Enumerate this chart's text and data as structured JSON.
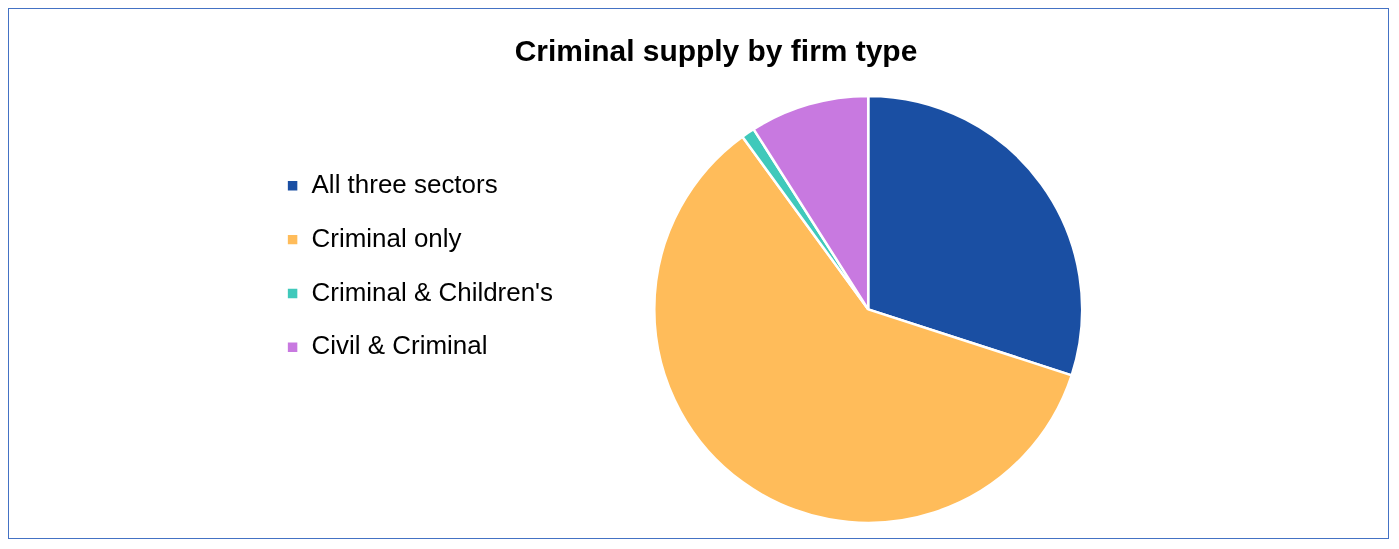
{
  "chart_data": {
    "type": "pie",
    "title": "Criminal supply by firm type",
    "categories": [
      "All three sectors",
      "Criminal only",
      "Criminal & Children's",
      "Civil & Criminal"
    ],
    "values": [
      30,
      60,
      1,
      9
    ],
    "colors": [
      "#1a4fa3",
      "#ffbc5a",
      "#40c9bb",
      "#c879e0"
    ],
    "legend": "left"
  }
}
